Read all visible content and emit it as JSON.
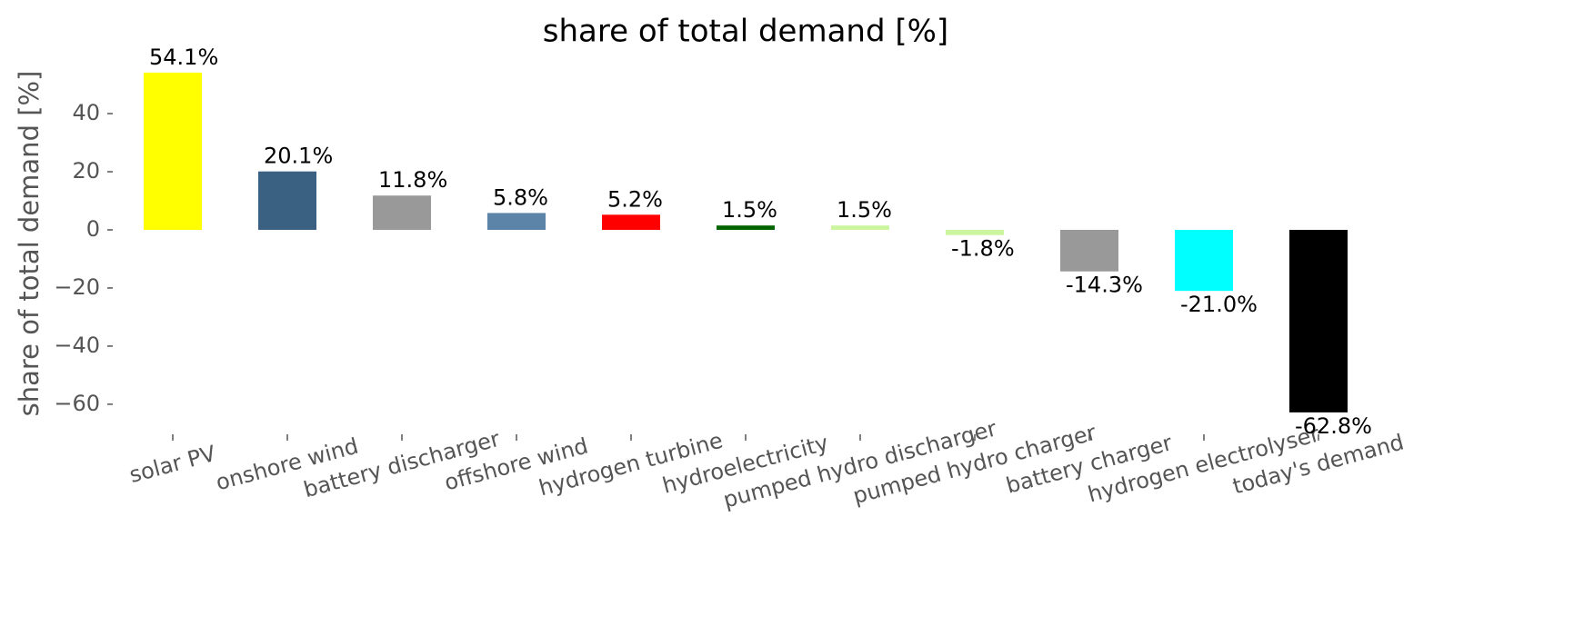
{
  "chart_data": {
    "type": "bar",
    "title": "share of total demand [%]",
    "y_label": "share of total demand [%]",
    "categories": [
      "solar PV",
      "onshore wind",
      "battery discharger",
      "offshore wind",
      "hydrogen turbine",
      "hydroelectricity",
      "pumped hydro discharger",
      "pumped hydro charger",
      "battery charger",
      "hydrogen electrolyser",
      "today's demand"
    ],
    "values": [
      54.1,
      20.1,
      11.8,
      5.8,
      5.2,
      1.5,
      1.5,
      -1.8,
      -14.3,
      -21.0,
      -62.8
    ],
    "value_labels": [
      "54.1%",
      "20.1%",
      "11.8%",
      "5.8%",
      "5.2%",
      "1.5%",
      "1.5%",
      "-1.8%",
      "-14.3%",
      "-21.0%",
      "-62.8%"
    ],
    "colors": [
      "#ffff00",
      "#3b6182",
      "#999999",
      "#5c84a8",
      "#ff0000",
      "#006400",
      "#ccf5a0",
      "#ccf5a0",
      "#999999",
      "#00ffff",
      "#000000"
    ],
    "ylim": [
      -69.4,
      57.2
    ],
    "yticks": [
      {
        "value": -60,
        "label": "−60"
      },
      {
        "value": -40,
        "label": "−40"
      },
      {
        "value": -20,
        "label": "−20"
      },
      0,
      20,
      40
    ],
    "grid": false
  }
}
